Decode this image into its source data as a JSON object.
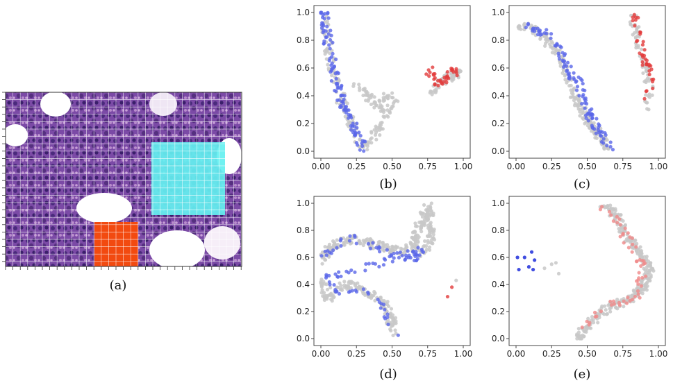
{
  "captions": [
    "(a)",
    "(b)",
    "(c)",
    "(d)",
    "(e)"
  ],
  "colors": {
    "gray": "#c8c8c8",
    "blue": "#5a66e8",
    "red": "#e23b3b",
    "darkblue": "#1020d8",
    "lightred": "#f08a8a",
    "cyan": "#64f0f0",
    "orange": "#f24a10"
  },
  "panel_a": {
    "description_kind": "histology-tile-grid",
    "highlight_colors": [
      "cyan",
      "orange"
    ]
  },
  "chart_data": [
    {
      "id": "b",
      "type": "scatter",
      "xlim": [
        0,
        1
      ],
      "ylim": [
        0,
        1
      ],
      "xticks": [
        "0.00",
        "0.25",
        "0.50",
        "0.75",
        "1.00"
      ],
      "yticks": [
        "0.0",
        "0.2",
        "0.4",
        "0.6",
        "0.8",
        "1.0"
      ],
      "series": [
        {
          "name": "gray",
          "color": "gray",
          "n": 200,
          "path": [
            [
              0.02,
              0.95
            ],
            [
              0.06,
              0.7
            ],
            [
              0.12,
              0.42
            ],
            [
              0.18,
              0.3
            ],
            [
              0.24,
              0.12
            ],
            [
              0.3,
              0.02
            ],
            [
              0.38,
              0.12
            ],
            [
              0.45,
              0.28
            ],
            [
              0.52,
              0.35
            ],
            [
              0.48,
              0.42
            ],
            [
              0.42,
              0.3
            ],
            [
              0.25,
              0.5
            ]
          ]
        },
        {
          "name": "blue",
          "color": "blue",
          "n": 110,
          "path": [
            [
              0.02,
              1.0
            ],
            [
              0.05,
              0.78
            ],
            [
              0.1,
              0.55
            ],
            [
              0.14,
              0.38
            ],
            [
              0.2,
              0.24
            ],
            [
              0.26,
              0.12
            ],
            [
              0.3,
              0.02
            ]
          ]
        },
        {
          "name": "gray-right",
          "color": "gray",
          "n": 50,
          "path": [
            [
              0.78,
              0.42
            ],
            [
              0.85,
              0.5
            ],
            [
              0.92,
              0.55
            ],
            [
              0.98,
              0.57
            ]
          ]
        },
        {
          "name": "red",
          "color": "red",
          "n": 36,
          "path": [
            [
              0.75,
              0.6
            ],
            [
              0.82,
              0.5
            ],
            [
              0.88,
              0.52
            ],
            [
              0.93,
              0.57
            ],
            [
              0.98,
              0.56
            ]
          ]
        }
      ]
    },
    {
      "id": "c",
      "type": "scatter",
      "xlim": [
        0,
        1
      ],
      "ylim": [
        0,
        1
      ],
      "xticks": [
        "0.00",
        "0.25",
        "0.50",
        "0.75",
        "1.00"
      ],
      "yticks": [
        "0.0",
        "0.2",
        "0.4",
        "0.6",
        "0.8",
        "1.0"
      ],
      "series": [
        {
          "name": "gray",
          "color": "gray",
          "n": 180,
          "path": [
            [
              0.02,
              0.9
            ],
            [
              0.12,
              0.88
            ],
            [
              0.22,
              0.8
            ],
            [
              0.3,
              0.7
            ],
            [
              0.36,
              0.55
            ],
            [
              0.4,
              0.45
            ],
            [
              0.44,
              0.32
            ],
            [
              0.5,
              0.22
            ],
            [
              0.58,
              0.12
            ],
            [
              0.64,
              0.02
            ]
          ]
        },
        {
          "name": "blue",
          "color": "blue",
          "n": 110,
          "path": [
            [
              0.02,
              0.92
            ],
            [
              0.12,
              0.88
            ],
            [
              0.22,
              0.85
            ],
            [
              0.3,
              0.75
            ],
            [
              0.36,
              0.6
            ],
            [
              0.44,
              0.48
            ],
            [
              0.5,
              0.3
            ],
            [
              0.56,
              0.2
            ],
            [
              0.62,
              0.1
            ],
            [
              0.66,
              0.0
            ]
          ]
        },
        {
          "name": "gray-right",
          "color": "gray",
          "n": 60,
          "path": [
            [
              0.82,
              0.98
            ],
            [
              0.86,
              0.8
            ],
            [
              0.9,
              0.62
            ],
            [
              0.94,
              0.45
            ],
            [
              0.92,
              0.3
            ]
          ]
        },
        {
          "name": "red",
          "color": "red",
          "n": 40,
          "path": [
            [
              0.83,
              0.98
            ],
            [
              0.86,
              0.82
            ],
            [
              0.9,
              0.68
            ],
            [
              0.93,
              0.56
            ],
            [
              0.94,
              0.48
            ],
            [
              0.92,
              0.4
            ]
          ]
        }
      ]
    },
    {
      "id": "d",
      "type": "scatter",
      "xlim": [
        0,
        1
      ],
      "ylim": [
        0,
        1
      ],
      "xticks": [
        "0.00",
        "0.25",
        "0.50",
        "0.75",
        "1.00"
      ],
      "yticks": [
        "0.0",
        "0.2",
        "0.4",
        "0.6",
        "0.8",
        "1.0"
      ],
      "series": [
        {
          "name": "gray",
          "color": "gray",
          "n": 280,
          "path": [
            [
              0.0,
              0.58
            ],
            [
              0.05,
              0.65
            ],
            [
              0.12,
              0.7
            ],
            [
              0.22,
              0.74
            ],
            [
              0.35,
              0.7
            ],
            [
              0.45,
              0.68
            ],
            [
              0.55,
              0.64
            ],
            [
              0.65,
              0.68
            ],
            [
              0.7,
              0.85
            ],
            [
              0.76,
              0.98
            ],
            [
              0.78,
              0.78
            ],
            [
              0.72,
              0.62
            ]
          ]
        },
        {
          "name": "gray-lower",
          "color": "gray",
          "n": 150,
          "path": [
            [
              0.0,
              0.45
            ],
            [
              0.05,
              0.3
            ],
            [
              0.1,
              0.36
            ],
            [
              0.18,
              0.4
            ],
            [
              0.28,
              0.38
            ],
            [
              0.35,
              0.32
            ],
            [
              0.42,
              0.28
            ],
            [
              0.48,
              0.18
            ],
            [
              0.52,
              0.04
            ]
          ]
        },
        {
          "name": "blue",
          "color": "blue",
          "n": 110,
          "path": [
            [
              0.02,
              0.6
            ],
            [
              0.1,
              0.7
            ],
            [
              0.22,
              0.74
            ],
            [
              0.35,
              0.68
            ],
            [
              0.5,
              0.62
            ],
            [
              0.62,
              0.58
            ],
            [
              0.72,
              0.66
            ],
            [
              0.05,
              0.45
            ],
            [
              0.12,
              0.32
            ],
            [
              0.25,
              0.35
            ],
            [
              0.4,
              0.3
            ],
            [
              0.48,
              0.15
            ],
            [
              0.52,
              0.04
            ]
          ]
        },
        {
          "name": "red",
          "color": "red",
          "points": [
            [
              0.89,
              0.31
            ],
            [
              0.92,
              0.38
            ]
          ]
        },
        {
          "name": "gray-extra",
          "color": "gray",
          "points": [
            [
              0.95,
              0.43
            ]
          ]
        }
      ]
    },
    {
      "id": "e",
      "type": "scatter",
      "xlim": [
        0,
        1
      ],
      "ylim": [
        0,
        1
      ],
      "xticks": [
        "0.00",
        "0.25",
        "0.50",
        "0.75",
        "1.00"
      ],
      "yticks": [
        "0.0",
        "0.2",
        "0.4",
        "0.6",
        "0.8",
        "1.0"
      ],
      "series": [
        {
          "name": "gray",
          "color": "gray",
          "n": 300,
          "path": [
            [
              0.62,
              0.98
            ],
            [
              0.7,
              0.92
            ],
            [
              0.76,
              0.78
            ],
            [
              0.86,
              0.65
            ],
            [
              0.94,
              0.52
            ],
            [
              0.9,
              0.38
            ],
            [
              0.8,
              0.28
            ],
            [
              0.66,
              0.24
            ],
            [
              0.56,
              0.16
            ],
            [
              0.48,
              0.06
            ],
            [
              0.44,
              0.0
            ]
          ]
        },
        {
          "name": "lightred",
          "color": "lightred",
          "n": 60,
          "path": [
            [
              0.62,
              0.98
            ],
            [
              0.68,
              0.9
            ],
            [
              0.74,
              0.8
            ],
            [
              0.8,
              0.7
            ],
            [
              0.86,
              0.6
            ],
            [
              0.9,
              0.5
            ],
            [
              0.84,
              0.3
            ],
            [
              0.66,
              0.26
            ],
            [
              0.48,
              0.1
            ]
          ]
        },
        {
          "name": "darkblue",
          "color": "darkblue",
          "points": [
            [
              0.01,
              0.6
            ],
            [
              0.02,
              0.51
            ],
            [
              0.06,
              0.6
            ],
            [
              0.09,
              0.53
            ],
            [
              0.11,
              0.64
            ],
            [
              0.13,
              0.58
            ],
            [
              0.12,
              0.51
            ]
          ]
        },
        {
          "name": "gray-extra",
          "color": "gray",
          "points": [
            [
              0.2,
              0.52
            ],
            [
              0.25,
              0.55
            ],
            [
              0.3,
              0.48
            ],
            [
              0.28,
              0.56
            ]
          ]
        }
      ]
    }
  ]
}
